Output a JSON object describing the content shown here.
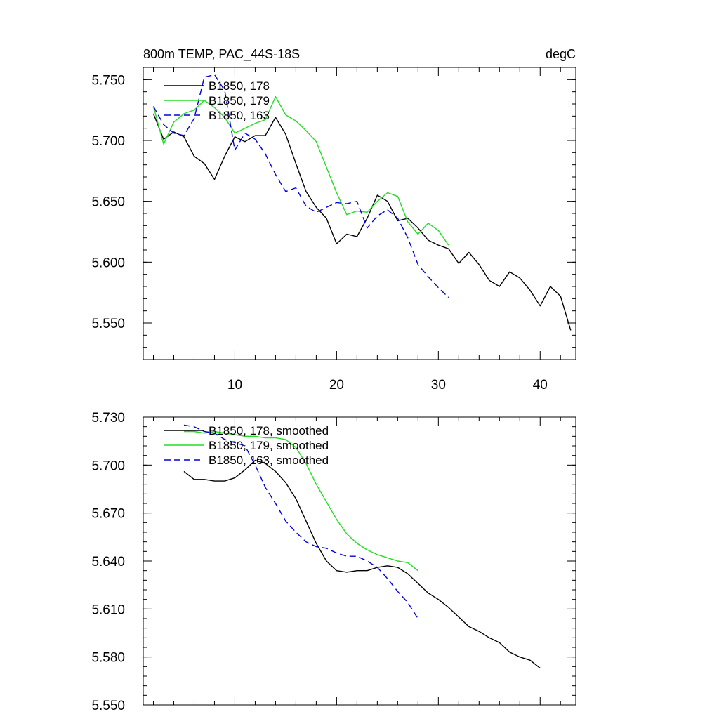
{
  "chart_data": [
    {
      "type": "line",
      "title": "800m TEMP, PAC_44S-18S",
      "units": "degC",
      "xlabel": "",
      "ylabel": "",
      "xlim": [
        1,
        43.5
      ],
      "ylim": [
        5.52,
        5.76
      ],
      "xticks": [
        10,
        20,
        30,
        40
      ],
      "yticks": [
        5.55,
        5.6,
        5.65,
        5.7,
        5.75
      ],
      "ytick_labels": [
        "5.550",
        "5.600",
        "5.650",
        "5.700",
        "5.750"
      ],
      "legend_position": "top-left",
      "series": [
        {
          "name": "B1850, 178",
          "color": "#000000",
          "dash": "solid",
          "x": [
            2,
            3,
            4,
            5,
            6,
            7,
            8,
            9,
            10,
            11,
            12,
            13,
            14,
            15,
            16,
            17,
            18,
            19,
            20,
            21,
            22,
            23,
            24,
            25,
            26,
            27,
            28,
            29,
            30,
            31,
            32,
            33,
            34,
            35,
            36,
            37,
            38,
            39,
            40,
            41,
            42,
            43
          ],
          "y": [
            5.722,
            5.701,
            5.707,
            5.703,
            5.687,
            5.681,
            5.668,
            5.687,
            5.703,
            5.699,
            5.704,
            5.704,
            5.719,
            5.705,
            5.681,
            5.658,
            5.645,
            5.636,
            5.615,
            5.623,
            5.621,
            5.636,
            5.655,
            5.65,
            5.634,
            5.636,
            5.628,
            5.618,
            5.614,
            5.611,
            5.599,
            5.608,
            5.598,
            5.585,
            5.58,
            5.592,
            5.587,
            5.577,
            5.564,
            5.58,
            5.572,
            5.544
          ]
        },
        {
          "name": "B1850, 179",
          "color": "#22dd22",
          "dash": "solid",
          "x": [
            2,
            3,
            4,
            5,
            6,
            7,
            8,
            9,
            10,
            11,
            12,
            13,
            14,
            15,
            16,
            17,
            18,
            19,
            20,
            21,
            22,
            23,
            24,
            25,
            26,
            27,
            28,
            29,
            30,
            31
          ],
          "y": [
            5.728,
            5.697,
            5.715,
            5.722,
            5.725,
            5.733,
            5.727,
            5.719,
            5.706,
            5.71,
            5.714,
            5.717,
            5.736,
            5.721,
            5.716,
            5.708,
            5.699,
            5.678,
            5.657,
            5.639,
            5.642,
            5.641,
            5.65,
            5.657,
            5.654,
            5.633,
            5.623,
            5.632,
            5.626,
            5.614
          ]
        },
        {
          "name": "B1850, 163",
          "color": "#0000dd",
          "dash": "dashed",
          "x": [
            2,
            3,
            4,
            5,
            6,
            7,
            8,
            9,
            10,
            11,
            12,
            13,
            14,
            15,
            16,
            17,
            18,
            19,
            20,
            21,
            22,
            23,
            24,
            25,
            26,
            27,
            28,
            29,
            30,
            31
          ],
          "y": [
            5.728,
            5.713,
            5.706,
            5.704,
            5.718,
            5.752,
            5.754,
            5.741,
            5.692,
            5.706,
            5.701,
            5.689,
            5.672,
            5.658,
            5.661,
            5.646,
            5.641,
            5.645,
            5.649,
            5.648,
            5.65,
            5.628,
            5.638,
            5.643,
            5.636,
            5.62,
            5.598,
            5.588,
            5.579,
            5.571
          ]
        }
      ]
    },
    {
      "type": "line",
      "title": "",
      "units": "",
      "xlabel": "",
      "ylabel": "",
      "xlim": [
        1,
        43.5
      ],
      "ylim": [
        5.55,
        5.73
      ],
      "xticks": [
        10,
        20,
        30,
        40
      ],
      "yticks": [
        5.55,
        5.58,
        5.61,
        5.64,
        5.67,
        5.7,
        5.73
      ],
      "ytick_labels": [
        "5.550",
        "5.580",
        "5.610",
        "5.640",
        "5.670",
        "5.700",
        "5.730"
      ],
      "legend_position": "top-left",
      "series": [
        {
          "name": "B1850, 178, smoothed",
          "color": "#000000",
          "dash": "solid",
          "x": [
            5,
            6,
            7,
            8,
            9,
            10,
            11,
            12,
            13,
            14,
            15,
            16,
            17,
            18,
            19,
            20,
            21,
            22,
            23,
            24,
            25,
            26,
            27,
            28,
            29,
            30,
            31,
            32,
            33,
            34,
            35,
            36,
            37,
            38,
            39,
            40
          ],
          "y": [
            5.696,
            5.691,
            5.691,
            5.69,
            5.69,
            5.692,
            5.697,
            5.703,
            5.701,
            5.696,
            5.689,
            5.679,
            5.665,
            5.651,
            5.64,
            5.634,
            5.633,
            5.634,
            5.634,
            5.636,
            5.637,
            5.636,
            5.632,
            5.626,
            5.62,
            5.616,
            5.611,
            5.605,
            5.599,
            5.596,
            5.592,
            5.589,
            5.583,
            5.58,
            5.578,
            5.573
          ]
        },
        {
          "name": "B1850, 179, smoothed",
          "color": "#22dd22",
          "dash": "solid",
          "x": [
            5,
            6,
            7,
            8,
            9,
            10,
            11,
            12,
            13,
            14,
            15,
            16,
            17,
            18,
            19,
            20,
            21,
            22,
            23,
            24,
            25,
            26,
            27,
            28
          ],
          "y": [
            5.721,
            5.721,
            5.72,
            5.721,
            5.72,
            5.719,
            5.718,
            5.718,
            5.717,
            5.717,
            5.716,
            5.711,
            5.701,
            5.688,
            5.677,
            5.666,
            5.657,
            5.651,
            5.647,
            5.644,
            5.642,
            5.64,
            5.639,
            5.634
          ]
        },
        {
          "name": "B1850, 163, smoothed",
          "color": "#0000dd",
          "dash": "dashed",
          "x": [
            5,
            6,
            7,
            8,
            9,
            10,
            11,
            12,
            13,
            14,
            15,
            16,
            17,
            18,
            19,
            20,
            21,
            22,
            23,
            24,
            25,
            26,
            27,
            28
          ],
          "y": [
            5.725,
            5.724,
            5.721,
            5.72,
            5.716,
            5.714,
            5.712,
            5.7,
            5.686,
            5.676,
            5.665,
            5.658,
            5.652,
            5.649,
            5.648,
            5.645,
            5.643,
            5.643,
            5.64,
            5.636,
            5.629,
            5.621,
            5.614,
            5.604
          ]
        }
      ]
    }
  ]
}
